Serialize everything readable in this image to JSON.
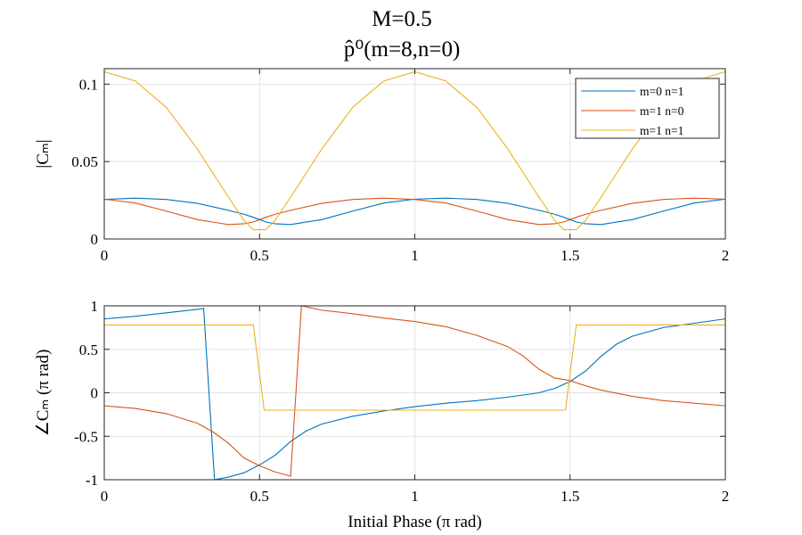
{
  "figure": {
    "title_line1": "M=0.5",
    "title_line2": "p̂⁰(m=8,n=0)"
  },
  "chart_data": [
    {
      "type": "line",
      "xlabel": "",
      "ylabel": "|C_m|",
      "ylabel_display": "|Cₘ|",
      "xlim": [
        0,
        2
      ],
      "ylim": [
        0,
        0.11
      ],
      "xticks": [
        0,
        0.5,
        1,
        1.5,
        2
      ],
      "xticklabels": [
        "0",
        "0.5",
        "1",
        "1.5",
        "2"
      ],
      "yticks": [
        0,
        0.05,
        0.1
      ],
      "yticklabels": [
        "0",
        "0.05",
        "0.1"
      ],
      "grid": true,
      "legend_position": "top-right",
      "x": [
        0,
        0.1,
        0.2,
        0.3,
        0.4,
        0.45,
        0.48,
        0.5,
        0.52,
        0.55,
        0.6,
        0.7,
        0.8,
        0.9,
        1.0,
        1.1,
        1.2,
        1.3,
        1.4,
        1.45,
        1.48,
        1.5,
        1.52,
        1.55,
        1.6,
        1.7,
        1.8,
        1.9,
        2.0
      ],
      "series": [
        {
          "name": "m=0 n=1",
          "color": "#0072BD",
          "values": [
            0.0255,
            0.0264,
            0.0255,
            0.023,
            0.0185,
            0.016,
            0.014,
            0.0125,
            0.011,
            0.0098,
            0.0093,
            0.0125,
            0.018,
            0.0232,
            0.0257,
            0.0264,
            0.0255,
            0.023,
            0.0185,
            0.016,
            0.014,
            0.0125,
            0.011,
            0.0098,
            0.0093,
            0.0125,
            0.018,
            0.0232,
            0.0257
          ]
        },
        {
          "name": "m=1 n=0",
          "color": "#D95319",
          "values": [
            0.0257,
            0.0232,
            0.018,
            0.0125,
            0.0093,
            0.0098,
            0.011,
            0.0125,
            0.014,
            0.016,
            0.0185,
            0.023,
            0.0255,
            0.0264,
            0.0255,
            0.0232,
            0.018,
            0.0125,
            0.0093,
            0.0098,
            0.011,
            0.0125,
            0.014,
            0.016,
            0.0185,
            0.023,
            0.0255,
            0.0264,
            0.0257
          ]
        },
        {
          "name": "m=1 n=1",
          "color": "#EDB120",
          "values": [
            0.108,
            0.102,
            0.085,
            0.058,
            0.027,
            0.012,
            0.006,
            0.006,
            0.006,
            0.012,
            0.027,
            0.058,
            0.085,
            0.102,
            0.108,
            0.102,
            0.085,
            0.058,
            0.027,
            0.012,
            0.006,
            0.006,
            0.006,
            0.012,
            0.027,
            0.058,
            0.085,
            0.102,
            0.108
          ]
        }
      ]
    },
    {
      "type": "line",
      "xlabel": "Initial Phase (π rad)",
      "ylabel": "∠C_m  (π rad)",
      "ylabel_display": "∠Cₘ  (π rad)",
      "xlim": [
        0,
        2
      ],
      "ylim": [
        -1,
        1
      ],
      "xticks": [
        0,
        0.5,
        1,
        1.5,
        2
      ],
      "xticklabels": [
        "0",
        "0.5",
        "1",
        "1.5",
        "2"
      ],
      "yticks": [
        -1,
        -0.5,
        0,
        0.5,
        1
      ],
      "yticklabels": [
        "-1",
        "-0.5",
        "0",
        "0.5",
        "1"
      ],
      "grid": true,
      "series": [
        {
          "name": "m=0 n=1",
          "color": "#0072BD",
          "points": [
            [
              0,
              0.85
            ],
            [
              0.1,
              0.88
            ],
            [
              0.2,
              0.92
            ],
            [
              0.3,
              0.96
            ],
            [
              0.32,
              0.97
            ],
            [
              0.355,
              -1.0
            ],
            [
              0.4,
              -0.97
            ],
            [
              0.45,
              -0.92
            ],
            [
              0.5,
              -0.83
            ],
            [
              0.55,
              -0.72
            ],
            [
              0.6,
              -0.56
            ],
            [
              0.65,
              -0.44
            ],
            [
              0.7,
              -0.36
            ],
            [
              0.8,
              -0.27
            ],
            [
              0.9,
              -0.21
            ],
            [
              1.0,
              -0.16
            ],
            [
              1.1,
              -0.12
            ],
            [
              1.2,
              -0.09
            ],
            [
              1.3,
              -0.05
            ],
            [
              1.4,
              0.0
            ],
            [
              1.45,
              0.05
            ],
            [
              1.5,
              0.13
            ],
            [
              1.55,
              0.25
            ],
            [
              1.6,
              0.42
            ],
            [
              1.65,
              0.56
            ],
            [
              1.7,
              0.65
            ],
            [
              1.8,
              0.75
            ],
            [
              1.9,
              0.8
            ],
            [
              2.0,
              0.85
            ]
          ]
        },
        {
          "name": "m=1 n=0",
          "color": "#D95319",
          "points": [
            [
              0,
              -0.15
            ],
            [
              0.1,
              -0.18
            ],
            [
              0.2,
              -0.24
            ],
            [
              0.3,
              -0.35
            ],
            [
              0.35,
              -0.45
            ],
            [
              0.4,
              -0.58
            ],
            [
              0.45,
              -0.75
            ],
            [
              0.5,
              -0.84
            ],
            [
              0.55,
              -0.91
            ],
            [
              0.6,
              -0.96
            ],
            [
              0.635,
              1.0
            ],
            [
              0.7,
              0.95
            ],
            [
              0.8,
              0.91
            ],
            [
              0.9,
              0.86
            ],
            [
              1.0,
              0.82
            ],
            [
              1.1,
              0.76
            ],
            [
              1.2,
              0.66
            ],
            [
              1.3,
              0.53
            ],
            [
              1.35,
              0.42
            ],
            [
              1.4,
              0.27
            ],
            [
              1.45,
              0.17
            ],
            [
              1.5,
              0.14
            ],
            [
              1.55,
              0.08
            ],
            [
              1.6,
              0.03
            ],
            [
              1.7,
              -0.04
            ],
            [
              1.8,
              -0.09
            ],
            [
              1.9,
              -0.12
            ],
            [
              2.0,
              -0.15
            ]
          ]
        },
        {
          "name": "m=1 n=1",
          "color": "#EDB120",
          "points": [
            [
              0,
              0.78
            ],
            [
              0.48,
              0.78
            ],
            [
              0.515,
              -0.2
            ],
            [
              1.485,
              -0.2
            ],
            [
              1.52,
              0.78
            ],
            [
              2.0,
              0.78
            ]
          ]
        }
      ]
    }
  ]
}
